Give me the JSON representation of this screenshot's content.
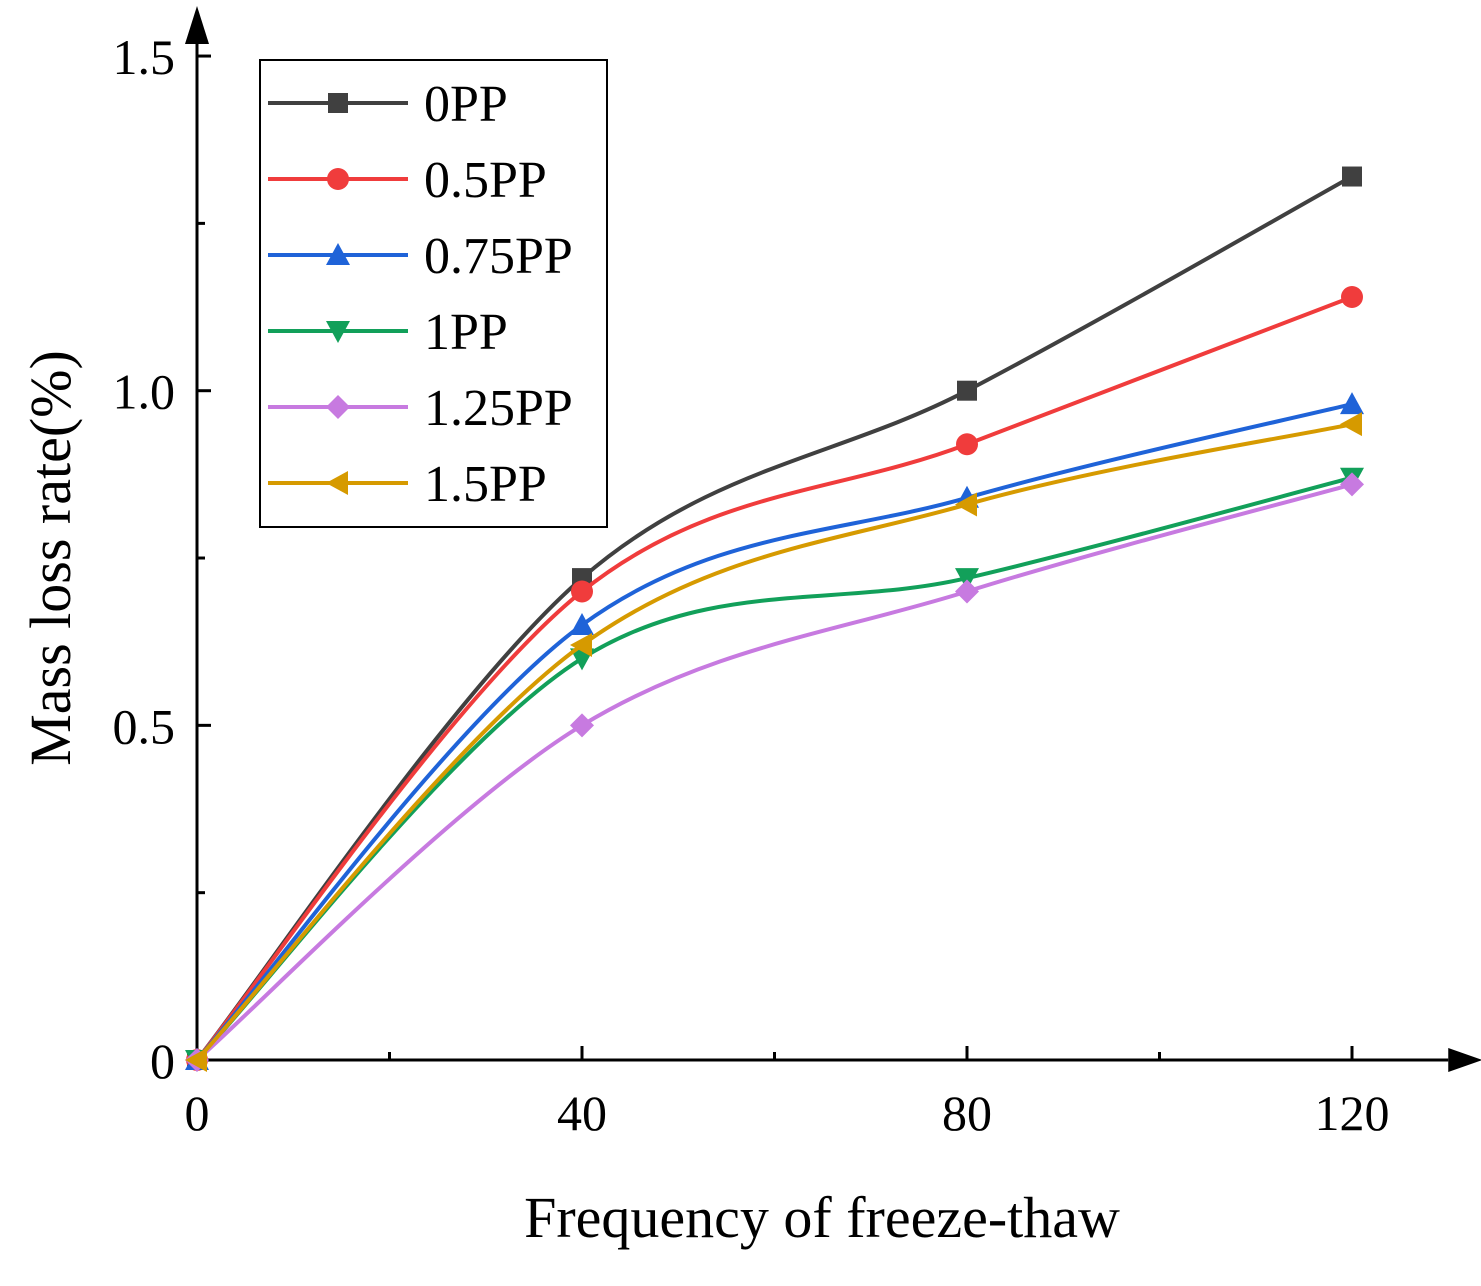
{
  "chart_data": {
    "type": "line",
    "title": "",
    "xlabel": "Frequency of freeze-thaw",
    "ylabel": "Mass loss rate(%)",
    "x": [
      0,
      40,
      80,
      120
    ],
    "xlim": [
      0,
      130
    ],
    "ylim": [
      0,
      1.5
    ],
    "x_ticks": [
      0,
      40,
      80,
      120
    ],
    "x_tick_labels": [
      "0",
      "40",
      "80",
      "120"
    ],
    "x_minor_ticks": [
      20,
      60,
      100
    ],
    "y_ticks": [
      0,
      0.5,
      1.0,
      1.5
    ],
    "y_tick_labels": [
      "0",
      "0.5",
      "1.0",
      "1.5"
    ],
    "y_minor_ticks": [
      0.25,
      0.75,
      1.25
    ],
    "grid": false,
    "legend_position": "top-left",
    "series": [
      {
        "name": "0PP",
        "values": [
          0,
          0.72,
          1.0,
          1.32
        ],
        "color": "#404040",
        "marker": "square"
      },
      {
        "name": "0.5PP",
        "values": [
          0,
          0.7,
          0.92,
          1.14
        ],
        "color": "#f03c3c",
        "marker": "circle"
      },
      {
        "name": "0.75PP",
        "values": [
          0,
          0.65,
          0.84,
          0.98
        ],
        "color": "#1f63d8",
        "marker": "triangle-up"
      },
      {
        "name": "1PP",
        "values": [
          0,
          0.6,
          0.72,
          0.87
        ],
        "color": "#12a05a",
        "marker": "triangle-down"
      },
      {
        "name": "1.25PP",
        "values": [
          0,
          0.5,
          0.7,
          0.86
        ],
        "color": "#c77ae0",
        "marker": "diamond"
      },
      {
        "name": "1.5PP",
        "values": [
          0,
          0.62,
          0.83,
          0.95
        ],
        "color": "#d69a00",
        "marker": "triangle-left"
      }
    ]
  }
}
